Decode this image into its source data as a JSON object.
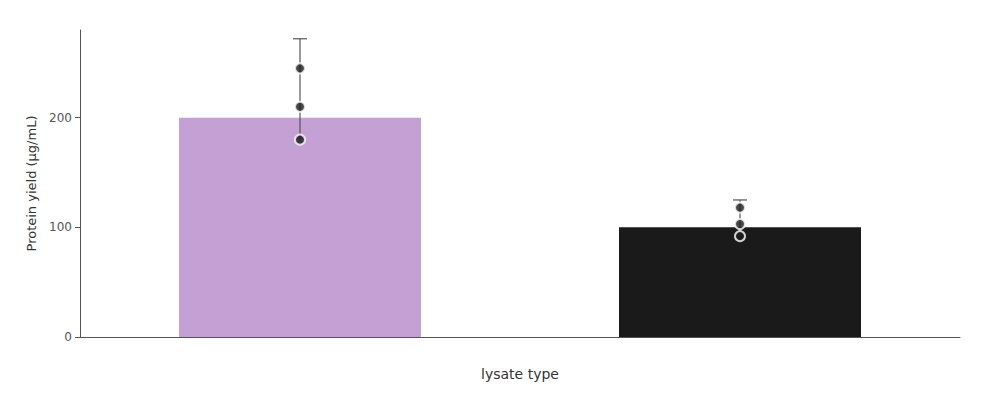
{
  "chart_data": {
    "type": "bar",
    "categories": [
      null,
      null
    ],
    "values": [
      200,
      100
    ],
    "colors": [
      "#c4a0d4",
      "#1a1a1a"
    ],
    "xlabel": "lysate type",
    "ylabel": "Protein yield (μg/mL)",
    "ylim": [
      0,
      280
    ],
    "yticks": [
      0,
      100,
      200
    ],
    "grid": false,
    "tick_labels": "y",
    "points": [
      [
        245,
        210,
        180
      ],
      [
        118,
        103,
        92
      ]
    ],
    "error_bars": [
      {
        "center": 260,
        "plus": 12
      },
      {
        "center": 118,
        "plus": 7
      }
    ]
  }
}
